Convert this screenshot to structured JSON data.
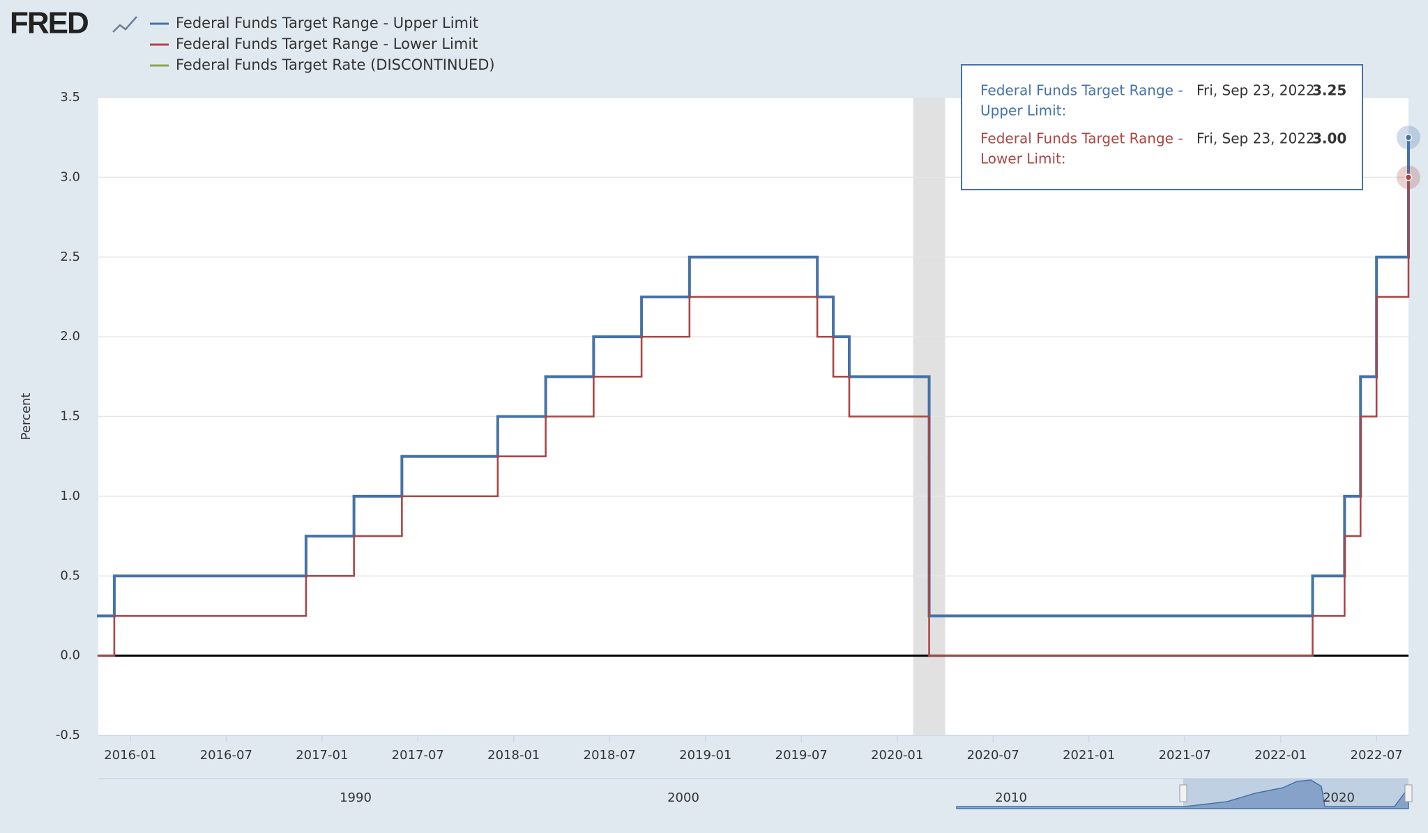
{
  "logo": "FRED",
  "chart_data": {
    "type": "step-line",
    "y_label": "Percent",
    "x": [
      "2015-11",
      "2015-12",
      "2016-12",
      "2017-03",
      "2017-06",
      "2017-12",
      "2018-03",
      "2018-06",
      "2018-09",
      "2018-12",
      "2019-08",
      "2019-09",
      "2019-10",
      "2020-03",
      "2020-03",
      "2022-03",
      "2022-05",
      "2022-06",
      "2022-07",
      "2022-09"
    ],
    "series": [
      {
        "name": "Federal Funds Target Range - Upper Limit",
        "color": "#4572a7",
        "values": [
          0.25,
          0.5,
          0.75,
          1.0,
          1.25,
          1.5,
          1.75,
          2.0,
          2.25,
          2.5,
          2.25,
          2.0,
          1.75,
          1.25,
          0.25,
          0.5,
          1.0,
          1.75,
          2.5,
          3.25
        ]
      },
      {
        "name": "Federal Funds Target Range - Lower Limit",
        "color": "#aa4643",
        "values": [
          0,
          0.25,
          0.5,
          0.75,
          1.0,
          1.25,
          1.5,
          1.75,
          2.0,
          2.25,
          2.0,
          1.75,
          1.5,
          1.0,
          0,
          0.25,
          0.75,
          1.5,
          2.25,
          3.0
        ]
      }
    ],
    "legend_only": [
      {
        "name": "Federal Funds Target Rate (DISCONTINUED)",
        "color": "#89a54e"
      }
    ],
    "xlim": [
      "2015-11",
      "2022-09"
    ],
    "xticks": [
      "2016-01",
      "2016-07",
      "2017-01",
      "2017-07",
      "2018-01",
      "2018-07",
      "2019-01",
      "2019-07",
      "2020-01",
      "2020-07",
      "2021-01",
      "2021-07",
      "2022-01",
      "2022-07"
    ],
    "ylim": [
      -0.5,
      3.5
    ],
    "yticks": [
      -0.5,
      {
        "value": 0,
        "label": "0.0"
      },
      0.5,
      {
        "value": 1,
        "label": "1.0"
      },
      1.5,
      {
        "value": 2,
        "label": "2.0"
      },
      2.5,
      {
        "value": 3,
        "label": "3.0"
      },
      3.5
    ],
    "recession": [
      "2020-02",
      "2020-04"
    ],
    "grid": true,
    "navigator_labels": [
      "1990",
      "2000",
      "2010",
      "2020"
    ]
  },
  "tooltip": {
    "rows": [
      {
        "label": [
          "Federal Funds Target Range -",
          "Upper Limit:"
        ],
        "date": "Fri, Sep 23, 2022",
        "value": "3.25"
      },
      {
        "label": [
          "Federal Funds Target Range -",
          "Lower Limit:"
        ],
        "date": "Fri, Sep 23, 2022",
        "value": "3.00"
      }
    ]
  }
}
